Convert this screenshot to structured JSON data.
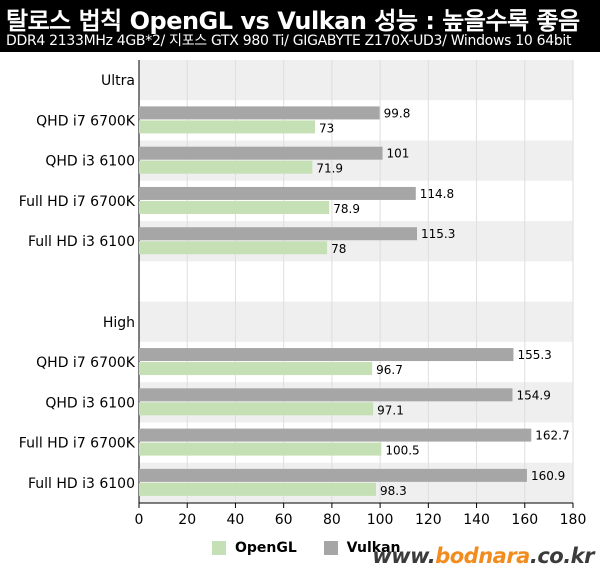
{
  "header": {
    "title": "탈로스 법칙 OpenGL vs Vulkan 성능 : 높을수록 좋음",
    "subtitle": "DDR4 2133MHz 4GB*2/ 지포스 GTX 980 Ti/ GIGABYTE Z170X-UD3/ Windows 10 64bit"
  },
  "watermark": {
    "prefix": "www.",
    "brand": "bodnara",
    "suffix": ".co.kr"
  },
  "chart_data": {
    "type": "bar",
    "orientation": "horizontal",
    "xlim": [
      0,
      180
    ],
    "ticks": [
      0,
      20,
      40,
      60,
      80,
      100,
      120,
      140,
      160,
      180
    ],
    "grid": true,
    "legend_position": "bottom",
    "colors": {
      "OpenGL": "#c5e0b4",
      "Vulkan": "#a6a6a6"
    },
    "groups": [
      {
        "label": "Ultra",
        "rows": [
          {
            "label": "QHD i7 6700K",
            "Vulkan": 99.8,
            "OpenGL": 73
          },
          {
            "label": "QHD i3 6100",
            "Vulkan": 101,
            "OpenGL": 71.9
          },
          {
            "label": "Full HD i7 6700K",
            "Vulkan": 114.8,
            "OpenGL": 78.9
          },
          {
            "label": "Full HD i3 6100",
            "Vulkan": 115.3,
            "OpenGL": 78
          }
        ]
      },
      {
        "label": "High",
        "rows": [
          {
            "label": "QHD i7 6700K",
            "Vulkan": 155.3,
            "OpenGL": 96.7
          },
          {
            "label": "QHD i3 6100",
            "Vulkan": 154.9,
            "OpenGL": 97.1
          },
          {
            "label": "Full HD i7 6700K",
            "Vulkan": 162.7,
            "OpenGL": 100.5
          },
          {
            "label": "Full HD i3 6100",
            "Vulkan": 160.9,
            "OpenGL": 98.3
          }
        ]
      }
    ],
    "series": [
      {
        "name": "OpenGL"
      },
      {
        "name": "Vulkan"
      }
    ]
  }
}
